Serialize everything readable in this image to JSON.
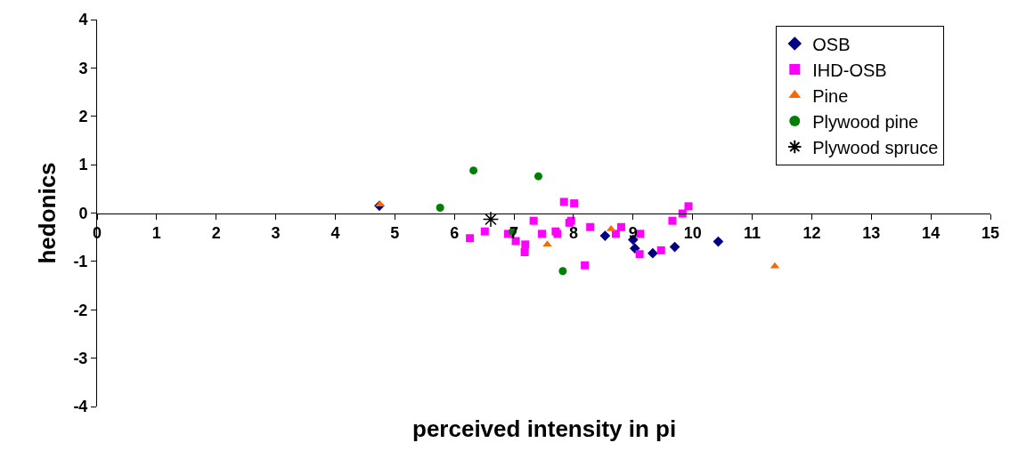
{
  "chart_data": {
    "type": "scatter",
    "xlabel": "perceived intensity in pi",
    "ylabel": "hedonics",
    "xlim": [
      0,
      15
    ],
    "ylim": [
      -4,
      4
    ],
    "xticks": [
      0,
      1,
      2,
      3,
      4,
      5,
      6,
      7,
      8,
      9,
      10,
      11,
      12,
      13,
      14,
      15
    ],
    "yticks": [
      -4,
      -3,
      -2,
      -1,
      0,
      1,
      2,
      3,
      4
    ],
    "grid": false,
    "legend": "top right",
    "series": [
      {
        "name": "OSB",
        "color": "#000080",
        "marker": "diamond",
        "x": [
          4.74,
          8.53,
          9.0,
          9.03,
          9.33,
          9.7,
          10.43
        ],
        "values": [
          0.15,
          -0.47,
          -0.55,
          -0.73,
          -0.83,
          -0.7,
          -0.59
        ]
      },
      {
        "name": "IHD-OSB",
        "color": "#ff00ff",
        "marker": "square",
        "x": [
          6.26,
          6.51,
          6.9,
          7.03,
          7.19,
          7.18,
          7.33,
          7.47,
          7.7,
          7.73,
          7.84,
          8.01,
          7.93,
          7.96,
          8.28,
          8.19,
          8.71,
          8.8,
          9.12,
          9.11,
          9.47,
          9.66,
          9.83,
          9.93
        ],
        "values": [
          -0.52,
          -0.38,
          -0.43,
          -0.58,
          -0.65,
          -0.81,
          -0.16,
          -0.43,
          -0.38,
          -0.43,
          0.23,
          0.2,
          -0.2,
          -0.16,
          -0.29,
          -1.08,
          -0.43,
          -0.29,
          -0.43,
          -0.85,
          -0.77,
          -0.16,
          -0.01,
          0.14
        ]
      },
      {
        "name": "Pine",
        "color": "#ff6600",
        "marker": "triangle",
        "x": [
          4.75,
          7.56,
          8.63,
          11.38
        ],
        "values": [
          0.18,
          -0.65,
          -0.33,
          -1.1
        ]
      },
      {
        "name": "Plywood pine",
        "color": "#008000",
        "marker": "circle",
        "x": [
          5.76,
          6.32,
          7.41,
          6.98,
          7.82
        ],
        "values": [
          0.11,
          0.88,
          0.76,
          -0.38,
          -1.2
        ]
      },
      {
        "name": "Plywood spruce",
        "color": "#000000",
        "marker": "cross",
        "x": [
          6.61
        ],
        "values": [
          -0.13
        ]
      }
    ]
  }
}
